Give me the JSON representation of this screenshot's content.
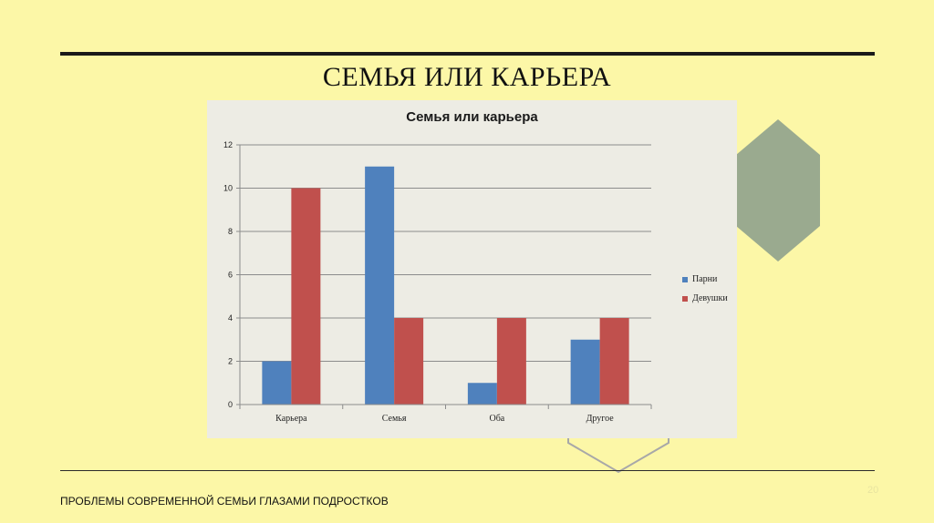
{
  "slide": {
    "title": "СЕМЬЯ ИЛИ КАРЬЕРА",
    "footer": "ПРОБЛЕМЫ СОВРЕМЕННОЙ СЕМЬИ ГЛАЗАМИ ПОДРОСТКОВ",
    "page_number": "20"
  },
  "colors": {
    "background": "#fcf7a7",
    "hexagon": "#9aaa8f",
    "parni": "#4f81bd",
    "devushki": "#c0504d"
  },
  "chart_data": {
    "type": "bar",
    "title": "Семья или карьера",
    "categories": [
      "Карьера",
      "Семья",
      "Оба",
      "Другое"
    ],
    "series": [
      {
        "name": "Парни",
        "color": "#4f81bd",
        "values": [
          2,
          11,
          1,
          3
        ]
      },
      {
        "name": "Девушки",
        "color": "#c0504d",
        "values": [
          10,
          4,
          4,
          4
        ]
      }
    ],
    "ylim": [
      0,
      12
    ],
    "yticks": [
      "0",
      "2",
      "4",
      "6",
      "8",
      "10",
      "12"
    ],
    "grid": true,
    "legend": "right"
  }
}
